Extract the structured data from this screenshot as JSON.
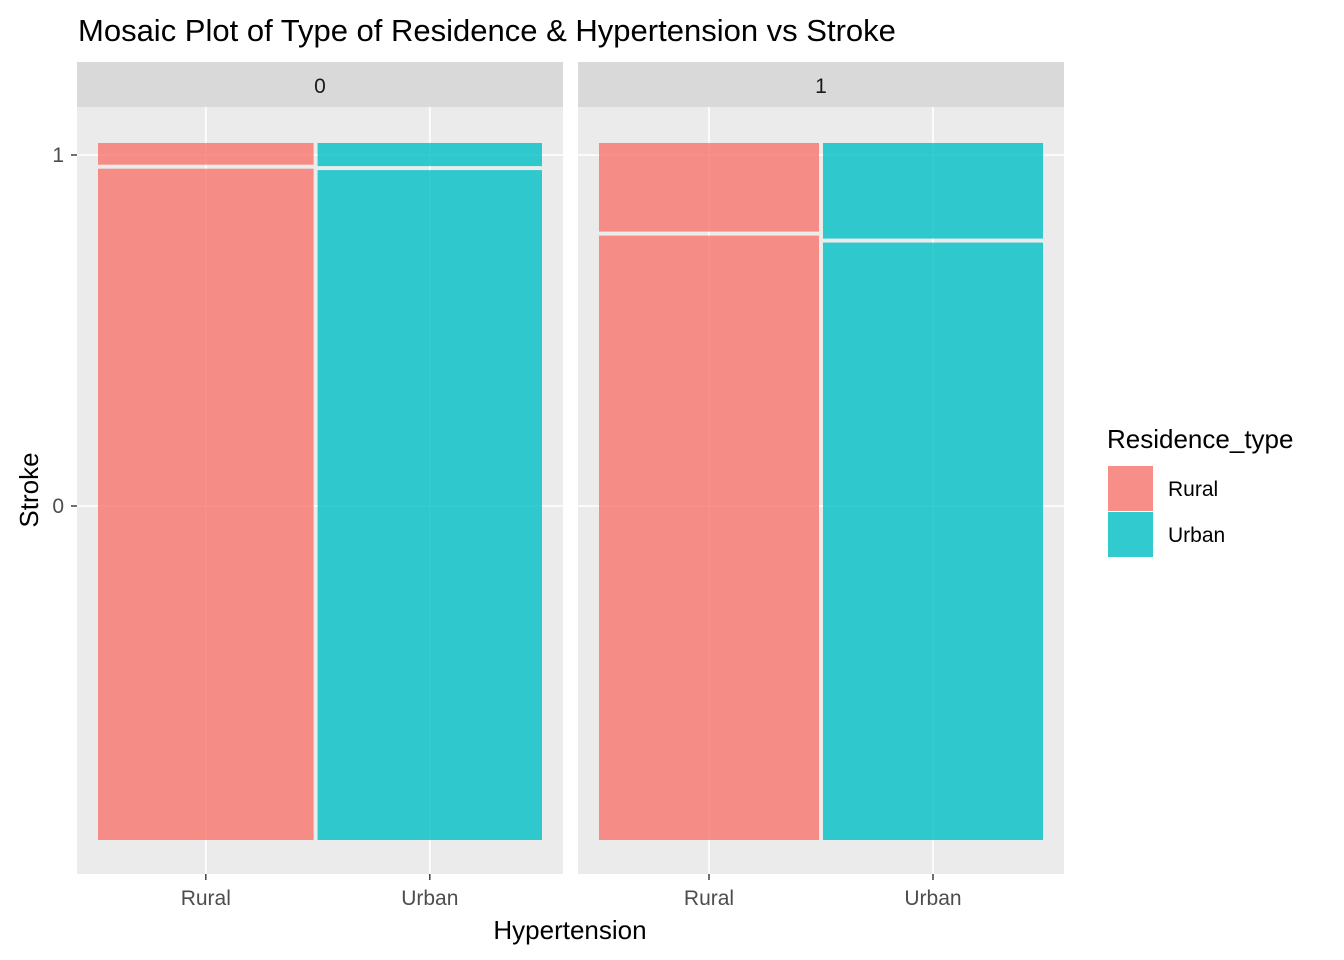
{
  "chart_data": {
    "type": "mosaic",
    "title": "Mosaic Plot of Type of Residence & Hypertension vs Stroke",
    "xlabel": "Hypertension",
    "ylabel": "Stroke",
    "facet_variable": "Hypertension",
    "facets": [
      "0",
      "1"
    ],
    "x_tick_labels": [
      "Rural",
      "Urban"
    ],
    "y_tick_labels": [
      "0",
      "1"
    ],
    "legend": {
      "title": "Residence_type",
      "position": "right",
      "items": [
        {
          "label": "Rural",
          "color": "#F8766D"
        },
        {
          "label": "Urban",
          "color": "#00BFC4"
        }
      ]
    },
    "grid": true,
    "panels": [
      {
        "facet": "0",
        "cells": [
          {
            "residence": "Rural",
            "width_share": 0.49,
            "stroke_1_share": 0.034
          },
          {
            "residence": "Urban",
            "width_share": 0.51,
            "stroke_1_share": 0.036
          }
        ]
      },
      {
        "facet": "1",
        "cells": [
          {
            "residence": "Rural",
            "width_share": 0.5,
            "stroke_1_share": 0.13
          },
          {
            "residence": "Urban",
            "width_share": 0.5,
            "stroke_1_share": 0.14
          }
        ]
      }
    ]
  }
}
